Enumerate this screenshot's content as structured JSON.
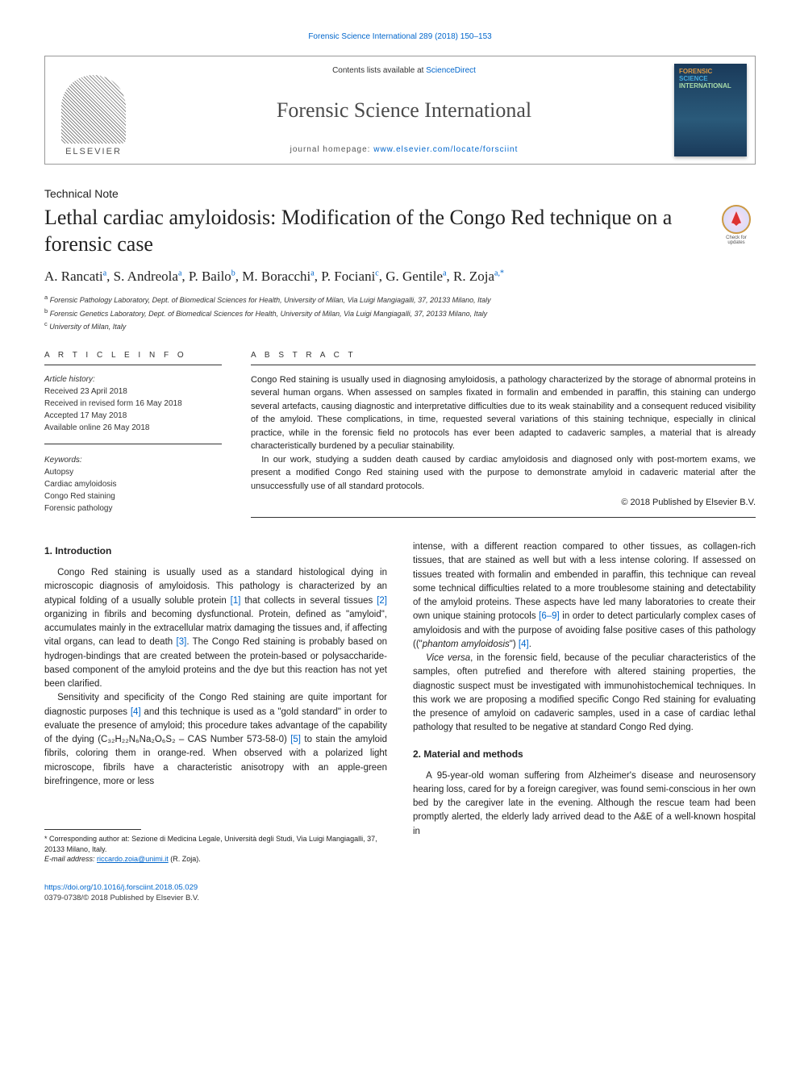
{
  "journal_ref": "Forensic Science International 289 (2018) 150–153",
  "header": {
    "contents_prefix": "Contents lists available at ",
    "contents_link": "ScienceDirect",
    "journal_title": "Forensic Science International",
    "homepage_prefix": "journal homepage: ",
    "homepage_url": "www.elsevier.com/locate/forsciint",
    "elsevier": "ELSEVIER",
    "cover_l1": "FORENSIC",
    "cover_l2": "SCIENCE",
    "cover_l3": "INTERNATIONAL"
  },
  "crossmark": {
    "l1": "Check for",
    "l2": "updates"
  },
  "article_type": "Technical Note",
  "article_title": "Lethal cardiac amyloidosis: Modification of the Congo Red technique on a forensic case",
  "authors_html": "A. Rancati<sup>a</sup>, S. Andreola<sup>a</sup>, P. Bailo<sup>b</sup>, M. Boracchi<sup>a</sup>, P. Fociani<sup>c</sup>, G. Gentile<sup>a</sup>, R. Zoja<sup>a,*</sup>",
  "affiliations": {
    "a": "Forensic Pathology Laboratory, Dept. of Biomedical Sciences for Health, University of Milan, Via Luigi Mangiagalli, 37, 20133 Milano, Italy",
    "b": "Forensic Genetics Laboratory, Dept. of Biomedical Sciences for Health, University of Milan, Via Luigi Mangiagalli, 37, 20133 Milano, Italy",
    "c": "University of Milan, Italy"
  },
  "info": {
    "head": "A R T I C L E   I N F O",
    "history_label": "Article history:",
    "received": "Received 23 April 2018",
    "revised": "Received in revised form 16 May 2018",
    "accepted": "Accepted 17 May 2018",
    "online": "Available online 26 May 2018",
    "keywords_label": "Keywords:",
    "keywords": [
      "Autopsy",
      "Cardiac amyloidosis",
      "Congo Red staining",
      "Forensic pathology"
    ]
  },
  "abstract": {
    "head": "A B S T R A C T",
    "p1": "Congo Red staining is usually used in diagnosing amyloidosis, a pathology characterized by the storage of abnormal proteins in several human organs. When assessed on samples fixated in formalin and embended in paraffin, this staining can undergo several artefacts, causing diagnostic and interpretative difficulties due to its weak stainability and a consequent reduced visibility of the amyloid. These complications, in time, requested several variations of this staining technique, especially in clinical practice, while in the forensic field no protocols has ever been adapted to cadaveric samples, a material that is already characteristically burdened by a peculiar stainability.",
    "p2": "In our work, studying a sudden death caused by cardiac amyloidosis and diagnosed only with post-mortem exams, we present a modified Congo Red staining used with the purpose to demonstrate amyloid in cadaveric material after the unsuccessfully use of all standard protocols.",
    "copyright": "© 2018 Published by Elsevier B.V."
  },
  "body": {
    "intro_head": "1. Introduction",
    "intro_p1": "Congo Red staining is usually used as a standard histological dying in microscopic diagnosis of amyloidosis. This pathology is characterized by an atypical folding of a usually soluble protein [1] that collects in several tissues [2] organizing in fibrils and becoming dysfunctional. Protein, defined as \"amyloid\", accumulates mainly in the extracellular matrix damaging the tissues and, if affecting vital organs, can lead to death [3]. The Congo Red staining is probably based on hydrogen-bindings that are created between the protein-based or polysaccharide-based component of the amyloid proteins and the dye but this reaction has not yet been clarified.",
    "intro_p2": "Sensitivity and specificity of the Congo Red staining are quite important for diagnostic purposes [4] and this technique is used as a \"gold standard\" in order to evaluate the presence of amyloid; this procedure takes advantage of the capability of the dying (C₃₂H₂₂N₆Na₂O₆S₂ – CAS Number 573-58-0) [5] to stain the amyloid fibrils, coloring them in orange-red. When observed with a polarized light microscope, fibrils have a characteristic anisotropy with an apple-green birefringence, more or less",
    "col2_p1": "intense, with a different reaction compared to other tissues, as collagen-rich tissues, that are stained as well but with a less intense coloring. If assessed on tissues treated with formalin and embended in paraffin, this technique can reveal some technical difficulties related to a more troublesome staining and detectability of the amyloid proteins. These aspects have led many laboratories to create their own unique staining protocols [6–9] in order to detect particularly complex cases of amyloidosis and with the purpose of avoiding false positive cases of this pathology (\"phantom amyloidosis\") [4].",
    "col2_p2": "Vice versa, in the forensic field, because of the peculiar characteristics of the samples, often putrefied and therefore with altered staining properties, the diagnostic suspect must be investigated with immunohistochemical techniques. In this work we are proposing a modified specific Congo Red staining for evaluating the presence of amyloid on cadaveric samples, used in a case of cardiac lethal pathology that resulted to be negative at standard Congo Red dying.",
    "methods_head": "2. Material and methods",
    "methods_p1": "A 95-year-old woman suffering from Alzheimer's disease and neurosensory hearing loss, cared for by a foreign caregiver, was found semi-conscious in her own bed by the caregiver late in the evening. Although the rescue team had been promptly alerted, the elderly lady arrived dead to the A&E of a well-known hospital in"
  },
  "footnotes": {
    "corr": "* Corresponding author at: Sezione di Medicina Legale, Università degli Studi, Via Luigi Mangiagalli, 37, 20133 Milano, Italy.",
    "email_label": "E-mail address: ",
    "email": "riccardo.zoia@unimi.it",
    "email_suffix": " (R. Zoja)."
  },
  "doi": {
    "url": "https://doi.org/10.1016/j.forsciint.2018.05.029",
    "line2": "0379-0738/© 2018 Published by Elsevier B.V."
  },
  "colors": {
    "link": "#0066cc",
    "text": "#1a1a1a",
    "rule": "#333333"
  }
}
